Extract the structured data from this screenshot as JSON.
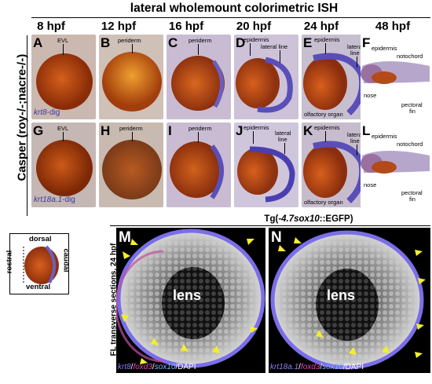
{
  "header": {
    "title": "lateral wholemount colorimetric ISH",
    "timepoints": [
      "8 hpf",
      "12 hpf",
      "16 hpf",
      "20 hpf",
      "24 hpf",
      "48 hpf"
    ],
    "side_label": "Casper (roy-/-;nacre-/-)"
  },
  "row1": {
    "probe_italic": "krt8",
    "probe_suffix": "-dig",
    "panels": [
      {
        "letter": "A",
        "labels": [
          "EVL"
        ]
      },
      {
        "letter": "B",
        "labels": [
          "periderm"
        ]
      },
      {
        "letter": "C",
        "labels": [
          "periderm"
        ]
      },
      {
        "letter": "D",
        "labels": [
          "epidermis",
          "lateral line"
        ]
      },
      {
        "letter": "E",
        "labels": [
          "epidermis",
          "lateral",
          "line",
          "olfactory organ"
        ]
      },
      {
        "letter": "F",
        "labels": [
          "epidermis",
          "notochord",
          "nose",
          "pectoral",
          "fin"
        ]
      }
    ]
  },
  "row2": {
    "probe_italic": "krt18a.1",
    "probe_suffix": "-dig",
    "panels": [
      {
        "letter": "G",
        "labels": [
          "EVL"
        ]
      },
      {
        "letter": "H",
        "labels": [
          "periderm"
        ]
      },
      {
        "letter": "I",
        "labels": [
          "periderm"
        ]
      },
      {
        "letter": "J",
        "labels": [
          "epidermis",
          "lateral",
          "line"
        ]
      },
      {
        "letter": "K",
        "labels": [
          "epidermis",
          "lateral",
          "line",
          "olfactory organ"
        ]
      },
      {
        "letter": "L",
        "labels": [
          "epidermis",
          "notochord",
          "nose",
          "pectoral",
          "fin"
        ]
      }
    ]
  },
  "orientation": {
    "dorsal": "dorsal",
    "ventral": "ventral",
    "rostral": "rostral",
    "caudal": "caudal"
  },
  "sections": {
    "title_prefix": "Tg(",
    "title_italic": "-4.7sox10",
    "title_suffix": "::EGFP)",
    "side_label": "FL transverse sections, 24 hpf",
    "M": {
      "letter": "M",
      "lens": "lens",
      "legend": [
        "krt8",
        "/",
        "foxd3",
        "/",
        "sox10",
        "/DAPI"
      ]
    },
    "N": {
      "letter": "N",
      "lens": "lens",
      "legend": [
        "krt18a.1",
        "/",
        "foxd3",
        "/",
        "sox10",
        "/DAPI"
      ]
    }
  },
  "colors": {
    "probe": "#3d3ba0",
    "krt": "#8a7df0",
    "foxd3": "#e04fb0",
    "sox10": "#7fb7ff",
    "arrow": "#f2ef2a",
    "embryo": "#b24a12"
  }
}
